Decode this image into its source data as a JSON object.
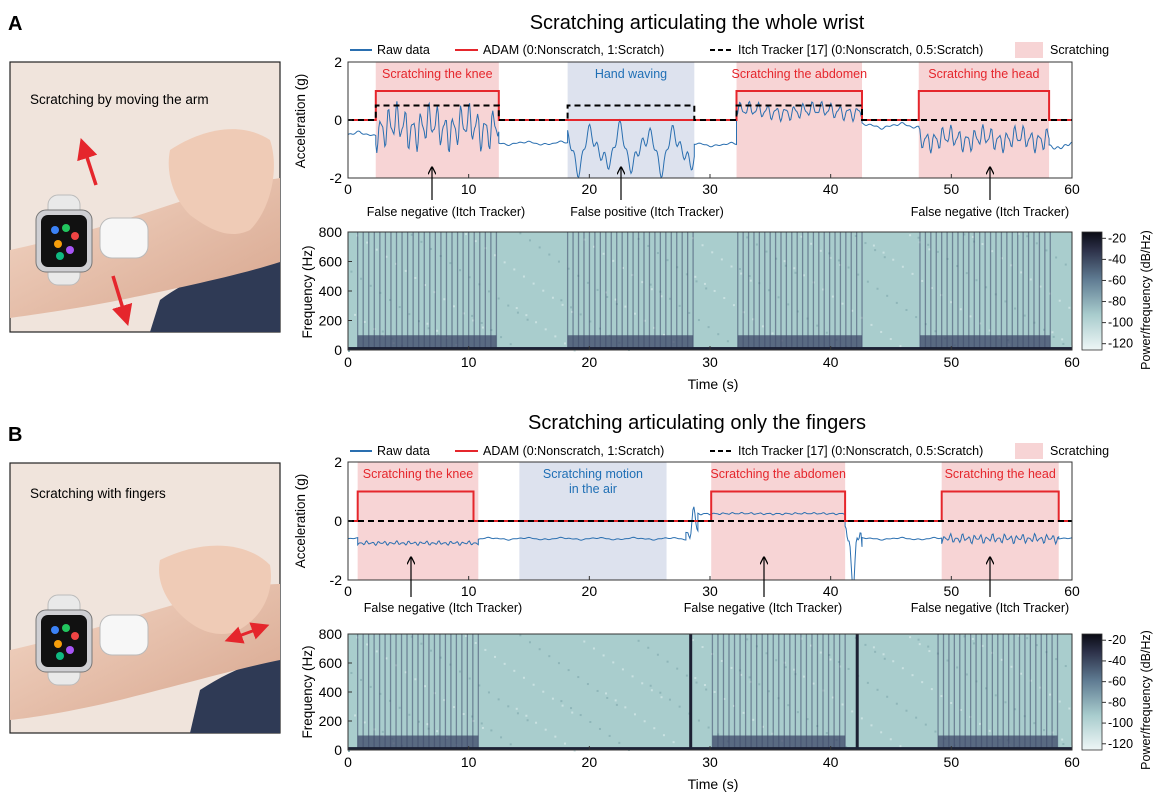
{
  "panels": [
    {
      "letter": "A",
      "photo_label": "Scratching by moving the arm",
      "chart_data": {
        "type": "line",
        "title": "Scratching articulating the whole wrist",
        "xlabel": "",
        "ylabel": "Acceleration (g)",
        "xlim": [
          0,
          60
        ],
        "ylim": [
          -2,
          2
        ],
        "xticks": [
          0,
          10,
          20,
          30,
          40,
          50,
          60
        ],
        "yticks": [
          -2,
          0,
          2
        ],
        "legend": {
          "placement": "top",
          "entries": [
            {
              "label": "Raw data",
              "style": "solid",
              "color": "#2a6fb0"
            },
            {
              "label": "ADAM (0:Nonscratch, 1:Scratch)",
              "style": "solid",
              "color": "#e5262c"
            },
            {
              "label": "Itch Tracker [17] (0:Nonscratch, 0.5:Scratch)",
              "style": "dashed",
              "color": "#000000"
            },
            {
              "label": "Scratching",
              "style": "patch",
              "color": "#f7d4d5"
            }
          ]
        },
        "regions": [
          {
            "label": "Scratching the knee",
            "x": [
              2.3,
              12.5
            ],
            "kind": "scratch",
            "color": "#f7d4d5",
            "text_color": "#e5262c"
          },
          {
            "label": "Hand waving",
            "x": [
              18.2,
              28.7
            ],
            "kind": "other",
            "color": "#dde2ee",
            "text_color": "#1f6fb5"
          },
          {
            "label": "Scratching the abdomen",
            "x": [
              32.2,
              42.6
            ],
            "kind": "scratch",
            "color": "#f7d4d5",
            "text_color": "#e5262c"
          },
          {
            "label": "Scratching the head",
            "x": [
              47.3,
              58.1
            ],
            "kind": "scratch",
            "color": "#f7d4d5",
            "text_color": "#e5262c"
          }
        ],
        "series": [
          {
            "name": "ADAM (0:Nonscratch, 1:Scratch)",
            "color": "#e5262c",
            "x": [
              0,
              2.3,
              2.3,
              12.5,
              12.5,
              32.2,
              32.2,
              42.6,
              42.6,
              47.3,
              47.3,
              58.1,
              58.1,
              60
            ],
            "values": [
              0,
              0,
              1,
              1,
              0,
              0,
              1,
              1,
              0,
              0,
              1,
              1,
              0,
              0
            ]
          },
          {
            "name": "Itch Tracker [17] (0:Nonscratch, 0.5:Scratch)",
            "color": "#000000",
            "x": [
              0,
              2.3,
              2.3,
              12.5,
              12.5,
              18.2,
              18.2,
              28.7,
              28.7,
              32.2,
              32.2,
              42.6,
              42.6,
              60
            ],
            "values": [
              0,
              0,
              0.5,
              0.5,
              0,
              0,
              0.5,
              0.5,
              0,
              0,
              0.5,
              0.5,
              0,
              0
            ]
          },
          {
            "name": "Raw data",
            "color": "#2a6fb0",
            "segments": [
              {
                "x": [
                  0,
                  2.3
                ],
                "center": -0.5,
                "amp": 0.12,
                "freq": 0.9
              },
              {
                "x": [
                  2.3,
                  12.5
                ],
                "center": -0.25,
                "amp": 0.9,
                "freq": 4.5
              },
              {
                "x": [
                  12.5,
                  18.2
                ],
                "center": -0.8,
                "amp": 0.08,
                "freq": 1.0
              },
              {
                "x": [
                  18.2,
                  28.7
                ],
                "center": -1.0,
                "amp": 1.0,
                "freq": 1.3
              },
              {
                "x": [
                  28.7,
                  32.2
                ],
                "center": -0.85,
                "amp": 0.08,
                "freq": 1.0
              },
              {
                "x": [
                  32.2,
                  42.6
                ],
                "center": 0.3,
                "amp": 0.35,
                "freq": 4.0
              },
              {
                "x": [
                  42.6,
                  47.3
                ],
                "center": -0.2,
                "amp": 0.12,
                "freq": 1.0
              },
              {
                "x": [
                  47.3,
                  58.1
                ],
                "center": -0.65,
                "amp": 0.5,
                "freq": 4.5
              },
              {
                "x": [
                  58.1,
                  60
                ],
                "center": -0.9,
                "amp": 0.2,
                "freq": 1.5
              }
            ]
          }
        ],
        "annotations": [
          {
            "text": "False negative (Itch Tracker)",
            "x": 7.0
          },
          {
            "text": "False positive (Itch Tracker)",
            "x": 21.5
          },
          {
            "text": "False negative (Itch Tracker)",
            "x": 53.0
          }
        ]
      },
      "spectrogram": {
        "type": "heatmap",
        "xlabel": "Time (s)",
        "ylabel": "Frequency (Hz)",
        "xlim": [
          0,
          60
        ],
        "ylim": [
          0,
          800
        ],
        "xticks": [
          0,
          10,
          20,
          30,
          40,
          50,
          60
        ],
        "yticks": [
          0,
          200,
          400,
          600,
          800
        ],
        "colorbar_label": "Power/frequency (dB/Hz)",
        "colorbar_ticks": [
          -20,
          -40,
          -60,
          -80,
          -100,
          -120
        ],
        "active_intervals": [
          [
            0.8,
            12.3
          ],
          [
            18.2,
            28.6
          ],
          [
            32.3,
            42.6
          ],
          [
            47.4,
            58.2
          ]
        ]
      }
    },
    {
      "letter": "B",
      "photo_label": "Scratching with fingers",
      "chart_data": {
        "type": "line",
        "title": "Scratching articulating only the fingers",
        "xlabel": "",
        "ylabel": "Acceleration (g)",
        "xlim": [
          0,
          60
        ],
        "ylim": [
          -2,
          2
        ],
        "xticks": [
          0,
          10,
          20,
          30,
          40,
          50,
          60
        ],
        "yticks": [
          -2,
          0,
          2
        ],
        "legend": {
          "placement": "top",
          "entries": [
            {
              "label": "Raw data",
              "style": "solid",
              "color": "#2a6fb0"
            },
            {
              "label": "ADAM (0:Nonscratch, 1:Scratch)",
              "style": "solid",
              "color": "#e5262c"
            },
            {
              "label": "Itch Tracker [17] (0:Nonscratch, 0.5:Scratch)",
              "style": "dashed",
              "color": "#000000"
            },
            {
              "label": "Scratching",
              "style": "patch",
              "color": "#f7d4d5"
            }
          ]
        },
        "regions": [
          {
            "label": "Scratching the knee",
            "x": [
              0.8,
              10.8
            ],
            "kind": "scratch",
            "color": "#f7d4d5",
            "text_color": "#e5262c"
          },
          {
            "label": "Scratching motion\nin the air",
            "x": [
              14.2,
              26.4
            ],
            "kind": "other",
            "color": "#dde2ee",
            "text_color": "#1f6fb5"
          },
          {
            "label": "Scratching the abdomen",
            "x": [
              30.1,
              41.2
            ],
            "kind": "scratch",
            "color": "#f7d4d5",
            "text_color": "#e5262c"
          },
          {
            "label": "Scratching the head",
            "x": [
              49.2,
              58.9
            ],
            "kind": "scratch",
            "color": "#f7d4d5",
            "text_color": "#e5262c"
          }
        ],
        "series": [
          {
            "name": "ADAM (0:Nonscratch, 1:Scratch)",
            "color": "#e5262c",
            "x": [
              0,
              0.8,
              0.8,
              10.4,
              10.4,
              30.1,
              30.1,
              41.2,
              41.2,
              49.2,
              49.2,
              58.9,
              58.9,
              60
            ],
            "values": [
              0,
              0,
              1,
              1,
              0,
              0,
              1,
              1,
              0,
              0,
              1,
              1,
              0,
              0
            ]
          },
          {
            "name": "Itch Tracker [17] (0:Nonscratch, 0.5:Scratch)",
            "color": "#000000",
            "x": [
              0,
              60
            ],
            "values": [
              0,
              0
            ]
          },
          {
            "name": "Raw data",
            "color": "#2a6fb0",
            "segments": [
              {
                "x": [
                  0,
                  0.8
                ],
                "center": -0.6,
                "amp": 0.04,
                "freq": 1.0
              },
              {
                "x": [
                  0.8,
                  10.8
                ],
                "center": -0.75,
                "amp": 0.08,
                "freq": 6.0
              },
              {
                "x": [
                  10.8,
                  28.0
                ],
                "center": -0.6,
                "amp": 0.05,
                "freq": 1.0
              },
              {
                "x": [
                  28.0,
                  29.0
                ],
                "center": -0.3,
                "amp": 0.9,
                "freq": 3.0
              },
              {
                "x": [
                  29.0,
                  41.2
                ],
                "center": 0.25,
                "amp": 0.04,
                "freq": 4.0
              },
              {
                "x": [
                  41.2,
                  42.6
                ],
                "center": -0.8,
                "amp": 1.6,
                "freq": 3.0
              },
              {
                "x": [
                  42.6,
                  49.2
                ],
                "center": -0.6,
                "amp": 0.05,
                "freq": 1.0
              },
              {
                "x": [
                  49.2,
                  58.9
                ],
                "center": -0.6,
                "amp": 0.18,
                "freq": 6.0
              },
              {
                "x": [
                  58.9,
                  60
                ],
                "center": -0.6,
                "amp": 0.04,
                "freq": 1.0
              }
            ]
          }
        ],
        "annotations": [
          {
            "text": "False negative (Itch Tracker)",
            "x": 5.5
          },
          {
            "text": "False negative (Itch Tracker)",
            "x": 34.5
          },
          {
            "text": "False negative (Itch Tracker)",
            "x": 53.0
          }
        ]
      },
      "spectrogram": {
        "type": "heatmap",
        "xlabel": "Time (s)",
        "ylabel": "Frequency (Hz)",
        "xlim": [
          0,
          60
        ],
        "ylim": [
          0,
          800
        ],
        "xticks": [
          0,
          10,
          20,
          30,
          40,
          50,
          60
        ],
        "yticks": [
          0,
          200,
          400,
          600,
          800
        ],
        "colorbar_label": "Power/frequency (dB/Hz)",
        "colorbar_ticks": [
          -20,
          -40,
          -60,
          -80,
          -100,
          -120
        ],
        "active_intervals": [
          [
            0.8,
            10.8
          ],
          [
            30.2,
            41.2
          ],
          [
            48.9,
            58.8
          ]
        ],
        "impulses": [
          28.4,
          42.2
        ]
      }
    }
  ]
}
